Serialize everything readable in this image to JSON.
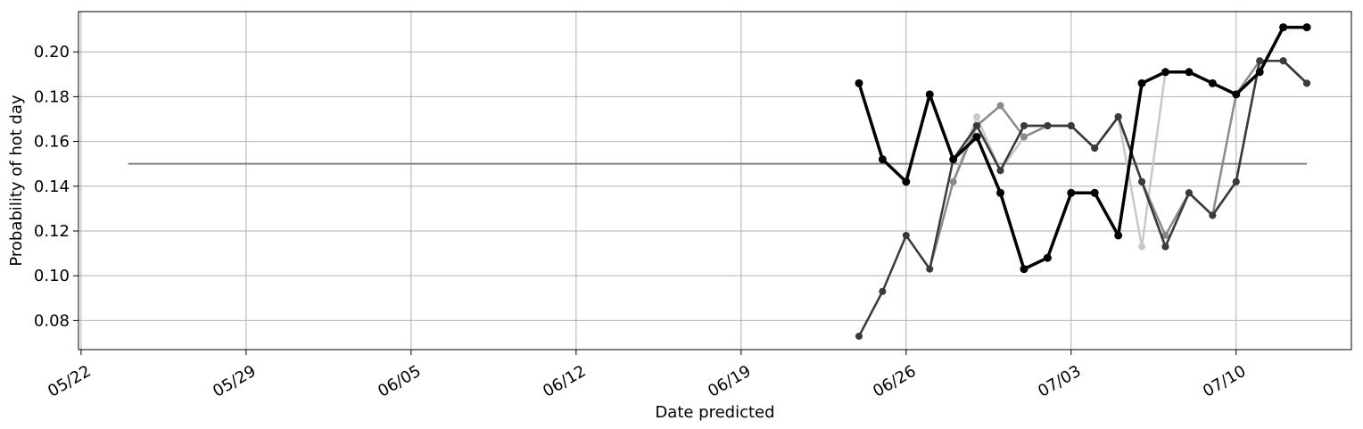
{
  "chart_data": {
    "type": "line",
    "title": "",
    "xlabel": "Date predicted",
    "ylabel": "Probability of hot day",
    "x_tick_labels": [
      "05/22",
      "05/29",
      "06/05",
      "06/12",
      "06/19",
      "06/26",
      "07/03",
      "07/10"
    ],
    "x_ticks": [
      "2023-05-22",
      "2023-05-29",
      "2023-06-05",
      "2023-06-12",
      "2023-06-19",
      "2023-06-26",
      "2023-07-03",
      "2023-07-10"
    ],
    "xlim": [
      "2023-05-22",
      "2023-07-15"
    ],
    "y_tick_labels": [
      "0.08",
      "0.10",
      "0.12",
      "0.14",
      "0.16",
      "0.18",
      "0.20"
    ],
    "y_ticks": [
      0.08,
      0.1,
      0.12,
      0.14,
      0.16,
      0.18,
      0.2
    ],
    "ylim": [
      0.067,
      0.218
    ],
    "grid": true,
    "legend": "none",
    "baseline": {
      "x": [
        "2023-05-24",
        "2023-07-13"
      ],
      "y": [
        0.15,
        0.15
      ],
      "color": "#808080"
    },
    "dates": [
      "2023-06-24",
      "2023-06-25",
      "2023-06-26",
      "2023-06-27",
      "2023-06-28",
      "2023-06-29",
      "2023-06-30",
      "2023-07-01",
      "2023-07-02",
      "2023-07-03",
      "2023-07-04",
      "2023-07-05",
      "2023-07-06",
      "2023-07-07",
      "2023-07-08",
      "2023-07-09",
      "2023-07-10",
      "2023-07-11",
      "2023-07-12",
      "2023-07-13"
    ],
    "series": [
      {
        "color": "#c8c8c8",
        "values": [
          null,
          null,
          null,
          null,
          0.142,
          0.171,
          0.147,
          0.162,
          0.167,
          0.167,
          0.157,
          0.171,
          0.113,
          0.191,
          0.191,
          0.186,
          0.181,
          0.191,
          0.211,
          0.211
        ]
      },
      {
        "color": "#8a8a8a",
        "values": [
          null,
          null,
          null,
          0.103,
          0.142,
          0.167,
          0.176,
          0.162,
          0.167,
          0.167,
          0.157,
          0.171,
          0.142,
          0.118,
          0.137,
          0.127,
          0.181,
          0.196,
          0.196,
          0.186
        ]
      },
      {
        "color": "#606060",
        "values": [
          null,
          null,
          null,
          null,
          null,
          0.167,
          0.147,
          0.167,
          0.167,
          0.167,
          0.157,
          0.171,
          0.142,
          0.113,
          0.137,
          0.127,
          0.142,
          0.196,
          0.196,
          0.186
        ]
      },
      {
        "color": "#3a3a3a",
        "values": [
          0.073,
          0.093,
          0.118,
          0.103,
          0.152,
          0.167,
          0.147,
          0.167,
          0.167,
          0.167,
          0.157,
          0.171,
          0.142,
          0.113,
          0.137,
          0.127,
          0.142,
          0.196,
          0.196,
          0.186
        ]
      },
      {
        "color": "#000000",
        "values": [
          0.186,
          0.152,
          0.142,
          0.181,
          0.152,
          0.162,
          0.137,
          0.103,
          0.108,
          0.137,
          0.137,
          0.118,
          0.186,
          0.191,
          0.191,
          0.186,
          0.181,
          0.191,
          0.211,
          0.211
        ]
      }
    ]
  }
}
